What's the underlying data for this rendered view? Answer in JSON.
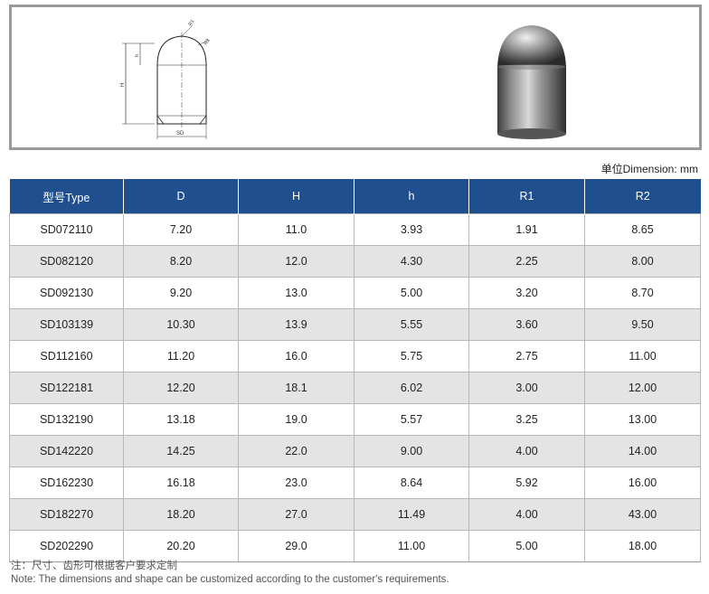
{
  "drawing": {
    "labels": {
      "r1": "R1",
      "r2": "R2",
      "h_small": "h",
      "h_big": "H",
      "d": "SD"
    }
  },
  "unit_label": "单位Dimension: mm",
  "table": {
    "headers": [
      "型号Type",
      "D",
      "H",
      "h",
      "R1",
      "R2"
    ],
    "rows": [
      [
        "SD072110",
        "7.20",
        "11.0",
        "3.93",
        "1.91",
        "8.65"
      ],
      [
        "SD082120",
        "8.20",
        "12.0",
        "4.30",
        "2.25",
        "8.00"
      ],
      [
        "SD092130",
        "9.20",
        "13.0",
        "5.00",
        "3.20",
        "8.70"
      ],
      [
        "SD103139",
        "10.30",
        "13.9",
        "5.55",
        "3.60",
        "9.50"
      ],
      [
        "SD112160",
        "11.20",
        "16.0",
        "5.75",
        "2.75",
        "11.00"
      ],
      [
        "SD122181",
        "12.20",
        "18.1",
        "6.02",
        "3.00",
        "12.00"
      ],
      [
        "SD132190",
        "13.18",
        "19.0",
        "5.57",
        "3.25",
        "13.00"
      ],
      [
        "SD142220",
        "14.25",
        "22.0",
        "9.00",
        "4.00",
        "14.00"
      ],
      [
        "SD162230",
        "16.18",
        "23.0",
        "8.64",
        "5.92",
        "16.00"
      ],
      [
        "SD182270",
        "18.20",
        "27.0",
        "11.49",
        "4.00",
        "43.00"
      ],
      [
        "SD202290",
        "20.20",
        "29.0",
        "11.00",
        "5.00",
        "18.00"
      ]
    ]
  },
  "note": {
    "zh": "注：尺寸、齿形可根据客户要求定制",
    "en": "Note: The dimensions and shape can be customized according to the customer's requirements."
  }
}
